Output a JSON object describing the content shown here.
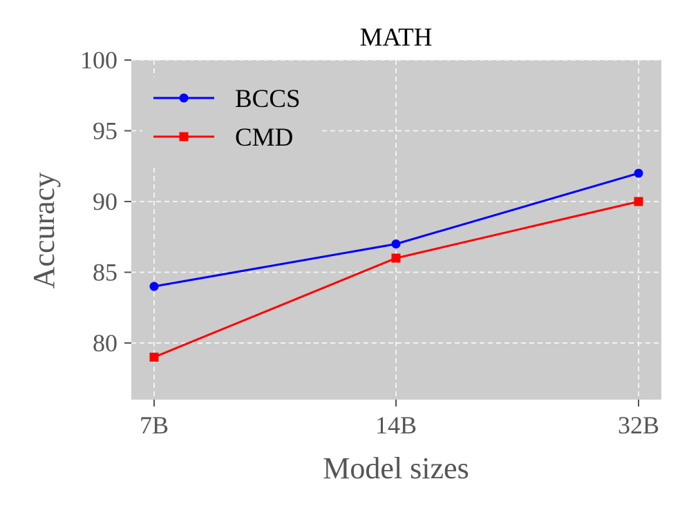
{
  "chart_data": {
    "type": "line",
    "title": "MATH",
    "xlabel": "Model sizes",
    "ylabel": "Accuracy",
    "categories": [
      "7B",
      "14B",
      "32B"
    ],
    "ylim": [
      76,
      100
    ],
    "yticks": [
      80,
      85,
      90,
      95,
      100
    ],
    "grid": true,
    "legend_position": "top-left",
    "series": [
      {
        "name": "BCCS",
        "values": [
          84,
          87,
          92
        ],
        "color": "#0000ff",
        "marker": "circle"
      },
      {
        "name": "CMD",
        "values": [
          79,
          86,
          90
        ],
        "color": "#ff0000",
        "marker": "square"
      }
    ]
  },
  "colors": {
    "plot_background": "#cccccc",
    "grid": "#f2f2f2",
    "axis_text": "#555555",
    "title_text": "#000000"
  }
}
